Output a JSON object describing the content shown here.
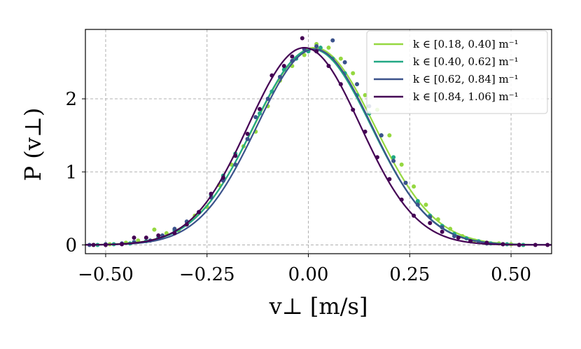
{
  "chart_data": {
    "type": "line",
    "xlabel": "v⊥ [m/s]",
    "ylabel": "P (v⊥)",
    "xlim": [
      -0.55,
      0.6
    ],
    "ylim": [
      -0.12,
      2.95
    ],
    "x_ticks": [
      -0.5,
      -0.25,
      0.0,
      0.25,
      0.5
    ],
    "x_tick_labels": [
      "−0.50",
      "−0.25",
      "0.00",
      "0.25",
      "0.50"
    ],
    "y_ticks": [
      0,
      1,
      2
    ],
    "y_tick_labels": [
      "0",
      "1",
      "2"
    ],
    "grid": true,
    "legend_position": "top-right",
    "series": [
      {
        "name": "k ∈ [0.18, 0.40] m⁻¹",
        "color": "#95d840",
        "curve": {
          "amp": 2.7,
          "mu": 0.015,
          "sigma": 0.148
        },
        "points": [
          [
            -0.53,
            0.0
          ],
          [
            -0.49,
            0.01
          ],
          [
            -0.45,
            0.03
          ],
          [
            -0.42,
            0.06
          ],
          [
            -0.38,
            0.21
          ],
          [
            -0.35,
            0.16
          ],
          [
            -0.32,
            0.2
          ],
          [
            -0.28,
            0.4
          ],
          [
            -0.25,
            0.52
          ],
          [
            -0.22,
            0.82
          ],
          [
            -0.19,
            1.1
          ],
          [
            -0.16,
            1.35
          ],
          [
            -0.13,
            1.55
          ],
          [
            -0.1,
            1.9
          ],
          [
            -0.07,
            2.25
          ],
          [
            -0.04,
            2.45
          ],
          [
            -0.01,
            2.6
          ],
          [
            0.02,
            2.75
          ],
          [
            0.05,
            2.7
          ],
          [
            0.08,
            2.55
          ],
          [
            0.11,
            2.35
          ],
          [
            0.14,
            2.05
          ],
          [
            0.17,
            1.85
          ],
          [
            0.2,
            1.5
          ],
          [
            0.23,
            1.1
          ],
          [
            0.26,
            0.8
          ],
          [
            0.29,
            0.55
          ],
          [
            0.32,
            0.35
          ],
          [
            0.35,
            0.22
          ],
          [
            0.38,
            0.12
          ],
          [
            0.41,
            0.06
          ],
          [
            0.44,
            0.02
          ],
          [
            0.47,
            0.02
          ],
          [
            0.5,
            0.01
          ],
          [
            0.53,
            0.0
          ]
        ]
      },
      {
        "name": "k ∈ [0.40, 0.62] m⁻¹",
        "color": "#22a884",
        "curve": {
          "amp": 2.68,
          "mu": 0.01,
          "sigma": 0.145
        },
        "points": [
          [
            -0.52,
            0.0
          ],
          [
            -0.48,
            0.01
          ],
          [
            -0.44,
            0.02
          ],
          [
            -0.4,
            0.05
          ],
          [
            -0.37,
            0.1
          ],
          [
            -0.33,
            0.2
          ],
          [
            -0.3,
            0.28
          ],
          [
            -0.27,
            0.45
          ],
          [
            -0.24,
            0.68
          ],
          [
            -0.21,
            0.95
          ],
          [
            -0.18,
            1.25
          ],
          [
            -0.15,
            1.45
          ],
          [
            -0.12,
            1.8
          ],
          [
            -0.09,
            2.1
          ],
          [
            -0.06,
            2.4
          ],
          [
            -0.03,
            2.55
          ],
          [
            0.0,
            2.65
          ],
          [
            0.03,
            2.7
          ],
          [
            0.06,
            2.55
          ],
          [
            0.09,
            2.35
          ],
          [
            0.12,
            2.05
          ],
          [
            0.15,
            1.8
          ],
          [
            0.18,
            1.5
          ],
          [
            0.21,
            1.2
          ],
          [
            0.24,
            0.85
          ],
          [
            0.27,
            0.6
          ],
          [
            0.3,
            0.4
          ],
          [
            0.33,
            0.26
          ],
          [
            0.36,
            0.15
          ],
          [
            0.39,
            0.09
          ],
          [
            0.42,
            0.05
          ],
          [
            0.45,
            0.02
          ],
          [
            0.49,
            0.01
          ],
          [
            0.53,
            0.0
          ]
        ]
      },
      {
        "name": "k ∈ [0.62, 0.84] m⁻¹",
        "color": "#3b528b",
        "curve": {
          "amp": 2.68,
          "mu": 0.015,
          "sigma": 0.142
        },
        "points": [
          [
            -0.54,
            0.0
          ],
          [
            -0.5,
            0.01
          ],
          [
            -0.46,
            0.02
          ],
          [
            -0.43,
            0.04
          ],
          [
            -0.39,
            0.06
          ],
          [
            -0.36,
            0.13
          ],
          [
            -0.33,
            0.22
          ],
          [
            -0.3,
            0.32
          ],
          [
            -0.27,
            0.45
          ],
          [
            -0.24,
            0.65
          ],
          [
            -0.21,
            0.88
          ],
          [
            -0.18,
            1.1
          ],
          [
            -0.15,
            1.45
          ],
          [
            -0.13,
            1.75
          ],
          [
            -0.1,
            2.0
          ],
          [
            -0.07,
            2.3
          ],
          [
            -0.04,
            2.52
          ],
          [
            -0.01,
            2.68
          ],
          [
            0.02,
            2.72
          ],
          [
            0.06,
            2.8
          ],
          [
            0.09,
            2.5
          ],
          [
            0.12,
            2.2
          ],
          [
            0.15,
            1.9
          ],
          [
            0.18,
            1.5
          ],
          [
            0.21,
            1.15
          ],
          [
            0.24,
            0.85
          ],
          [
            0.27,
            0.55
          ],
          [
            0.3,
            0.38
          ],
          [
            0.33,
            0.24
          ],
          [
            0.36,
            0.12
          ],
          [
            0.4,
            0.05
          ],
          [
            0.44,
            0.02
          ],
          [
            0.48,
            0.01
          ],
          [
            0.52,
            0.0
          ]
        ]
      },
      {
        "name": "k ∈ [0.84, 1.06] m⁻¹",
        "color": "#440154",
        "curve": {
          "amp": 2.7,
          "mu": -0.01,
          "sigma": 0.138
        },
        "points": [
          [
            -0.53,
            0.0
          ],
          [
            -0.5,
            0.0
          ],
          [
            -0.46,
            0.01
          ],
          [
            -0.43,
            0.1
          ],
          [
            -0.4,
            0.1
          ],
          [
            -0.37,
            0.13
          ],
          [
            -0.33,
            0.16
          ],
          [
            -0.3,
            0.28
          ],
          [
            -0.27,
            0.45
          ],
          [
            -0.24,
            0.7
          ],
          [
            -0.21,
            0.92
          ],
          [
            -0.18,
            1.22
          ],
          [
            -0.15,
            1.52
          ],
          [
            -0.12,
            1.86
          ],
          [
            -0.09,
            2.32
          ],
          [
            -0.06,
            2.45
          ],
          [
            -0.04,
            2.58
          ],
          [
            -0.015,
            2.83
          ],
          [
            0.02,
            2.65
          ],
          [
            0.05,
            2.45
          ],
          [
            0.08,
            2.2
          ],
          [
            0.11,
            1.85
          ],
          [
            0.14,
            1.55
          ],
          [
            0.17,
            1.2
          ],
          [
            0.2,
            0.9
          ],
          [
            0.23,
            0.62
          ],
          [
            0.26,
            0.4
          ],
          [
            0.3,
            0.3
          ],
          [
            0.33,
            0.18
          ],
          [
            0.37,
            0.1
          ],
          [
            0.4,
            0.05
          ],
          [
            0.44,
            0.03
          ],
          [
            0.48,
            0.01
          ],
          [
            0.52,
            0.0
          ],
          [
            0.56,
            0.0
          ],
          [
            0.59,
            0.0
          ]
        ]
      }
    ]
  }
}
